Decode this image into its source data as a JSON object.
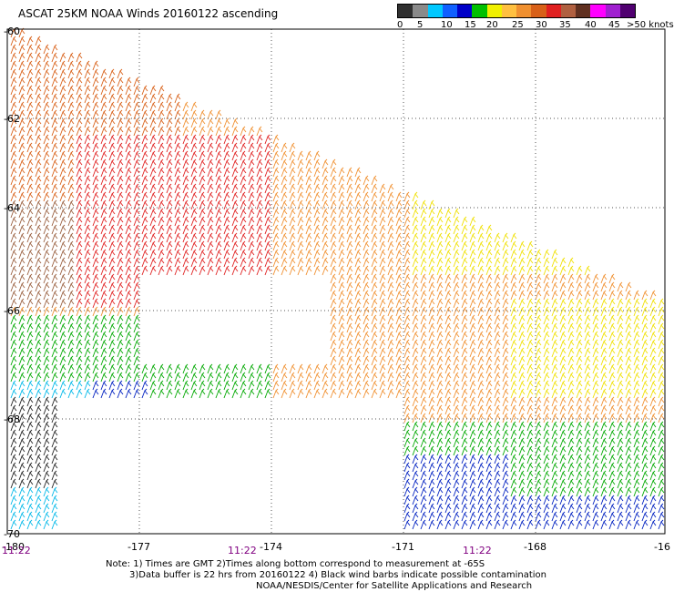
{
  "title": "ASCAT 25KM NOAA Winds 20160122 ascending",
  "legend": {
    "colors": [
      "#303030",
      "#8a8a8a",
      "#00c8ff",
      "#1060ff",
      "#0000c8",
      "#00c000",
      "#f0f000",
      "#ffc040",
      "#f09030",
      "#d86018",
      "#e02020",
      "#b06040",
      "#603020",
      "#ff00ff",
      "#a020d0",
      "#500070"
    ],
    "labels": [
      "0",
      "5",
      "10",
      "15",
      "20",
      "25",
      "30",
      "35",
      "40",
      "45",
      ">50 knots"
    ]
  },
  "axes": {
    "lat_labels": [
      "-60",
      "-62",
      "-64",
      "-66",
      "-68",
      "-70"
    ],
    "lon_labels": [
      "-180",
      "-177",
      "-174",
      "-171",
      "-168",
      "-16"
    ],
    "time_labels": [
      "11:22",
      "11:22",
      "11:22"
    ]
  },
  "notes": {
    "line1": "Note: 1) Times are GMT 2)Times along bottom correspond to measurement at -65S",
    "line2": "3)Data buffer is 22 hrs from 20160122 4) Black wind barbs indicate possible contamination",
    "line3": "NOAA/NESDIS/Center for Satellite Applications and Research"
  }
}
